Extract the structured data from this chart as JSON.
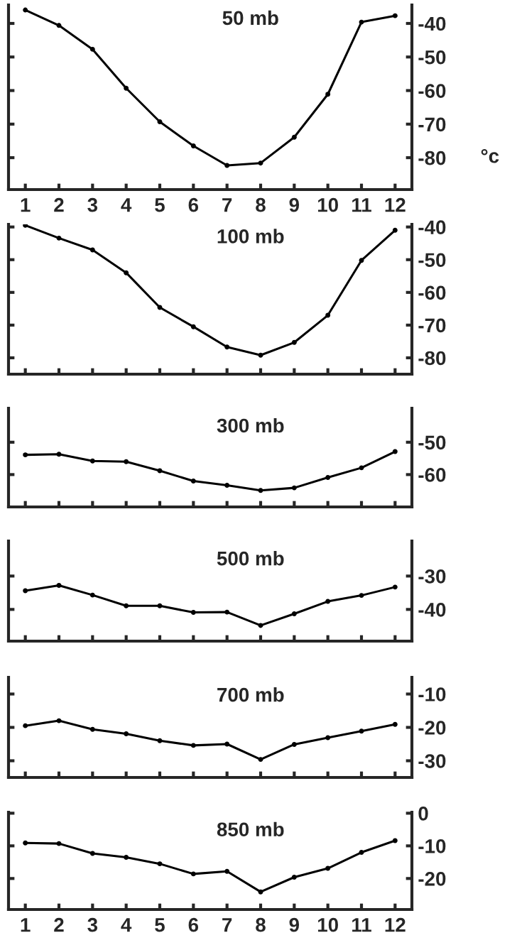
{
  "chart_data": [
    {
      "type": "line",
      "title": "50 mb",
      "ylabel": "°c",
      "categories": [
        "1",
        "2",
        "3",
        "4",
        "5",
        "6",
        "7",
        "8",
        "9",
        "10",
        "11",
        "12"
      ],
      "ylim": [
        -89.5,
        -34.5
      ],
      "yticks": [
        -40,
        -50,
        -60,
        -70,
        -80
      ],
      "marker": "circle",
      "series": [
        {
          "color": "#000000",
          "values": [
            -36,
            -40.6,
            -47.7,
            -59.3,
            -69.3,
            -76.5,
            -82.3,
            -81.6,
            -73.9,
            -61.1,
            -39.6,
            -37.7
          ]
        }
      ]
    },
    {
      "type": "line",
      "title": "100 mb",
      "categories": [
        "1",
        "2",
        "3",
        "4",
        "5",
        "6",
        "7",
        "8",
        "9",
        "10",
        "11",
        "12"
      ],
      "ylim": [
        -85,
        -39.2
      ],
      "yticks": [
        -40,
        -50,
        -60,
        -70,
        -80
      ],
      "marker": "circle",
      "tick_labels": "y",
      "series": [
        {
          "color": "#000000",
          "values": [
            -39.5,
            -43.4,
            -47,
            -54,
            -64.6,
            -70.5,
            -76.7,
            -79.2,
            -75.3,
            -67,
            -50.2,
            -41
          ]
        }
      ]
    },
    {
      "type": "line",
      "title": "300 mb",
      "categories": [
        "1",
        "2",
        "3",
        "4",
        "5",
        "6",
        "7",
        "8",
        "9",
        "10",
        "11",
        "12"
      ],
      "ylim": [
        -70,
        -39.5
      ],
      "yticks": [
        -50,
        -60
      ],
      "marker": "circle",
      "tick_labels": "y",
      "series": [
        {
          "color": "#000000",
          "values": [
            -53.9,
            -53.7,
            -55.8,
            -56,
            -58.8,
            -62,
            -63.3,
            -64.9,
            -64.1,
            -60.9,
            -57.9,
            -52.9
          ]
        }
      ]
    },
    {
      "type": "line",
      "title": "500 mb",
      "categories": [
        "1",
        "2",
        "3",
        "4",
        "5",
        "6",
        "7",
        "8",
        "9",
        "10",
        "11",
        "12"
      ],
      "ylim": [
        -49.5,
        -19.5
      ],
      "yticks": [
        -30,
        -40
      ],
      "marker": "circle",
      "tick_labels": "y",
      "series": [
        {
          "color": "#000000",
          "values": [
            -34.4,
            -32.8,
            -35.7,
            -38.9,
            -38.9,
            -40.9,
            -40.8,
            -44.8,
            -41.3,
            -37.6,
            -35.8,
            -33.3
          ]
        }
      ]
    },
    {
      "type": "line",
      "title": "700 mb",
      "categories": [
        "1",
        "2",
        "3",
        "4",
        "5",
        "6",
        "7",
        "8",
        "9",
        "10",
        "11",
        "12"
      ],
      "ylim": [
        -35,
        -5
      ],
      "yticks": [
        -10,
        -20,
        -30
      ],
      "marker": "circle",
      "tick_labels": "y",
      "series": [
        {
          "color": "#000000",
          "values": [
            -19.5,
            -18,
            -20.6,
            -21.9,
            -24,
            -25.4,
            -25,
            -29.6,
            -25.1,
            -23.1,
            -21.1,
            -19.1
          ]
        }
      ]
    },
    {
      "type": "line",
      "title": "850 mb",
      "categories": [
        "1",
        "2",
        "3",
        "4",
        "5",
        "6",
        "7",
        "8",
        "9",
        "10",
        "11",
        "12"
      ],
      "ylim": [
        -29.5,
        0.3
      ],
      "yticks": [
        0,
        -10,
        -20
      ],
      "marker": "circle",
      "series": [
        {
          "color": "#000000",
          "values": [
            -9.1,
            -9.3,
            -12.3,
            -13.5,
            -15.5,
            -18.6,
            -17.8,
            -24.1,
            -19.6,
            -16.9,
            -12,
            -8.4
          ]
        }
      ]
    }
  ]
}
